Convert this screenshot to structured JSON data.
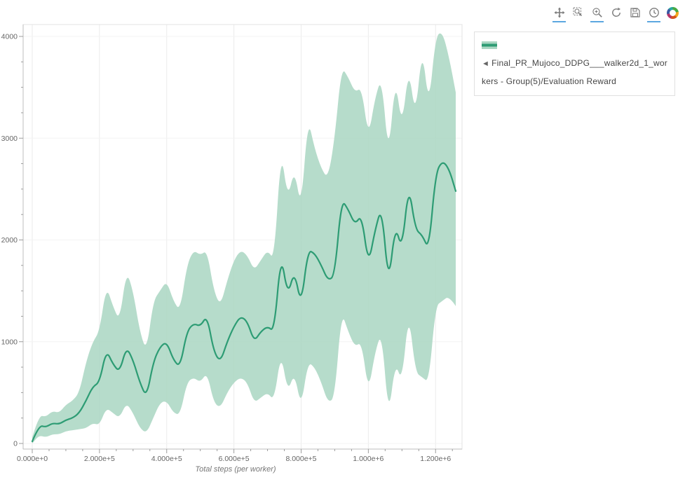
{
  "toolbar": {
    "icons": [
      {
        "name": "pan",
        "active": true
      },
      {
        "name": "box-zoom",
        "active": false
      },
      {
        "name": "wheel-zoom",
        "active": true
      },
      {
        "name": "reset",
        "active": false
      },
      {
        "name": "save",
        "active": false
      },
      {
        "name": "hover",
        "active": true
      },
      {
        "name": "bokeh-logo",
        "active": false
      }
    ]
  },
  "legend": {
    "toggle_glyph": "◄",
    "label": "Final_PR_Mujoco_DDPG___walker2d_1_workers - Group(5)/Evaluation Reward"
  },
  "chart_data": {
    "type": "line",
    "title": "",
    "xlabel": "Total steps (per worker)",
    "ylabel": "",
    "xlim": [
      0,
      1260000
    ],
    "ylim": [
      0,
      4000
    ],
    "grid": true,
    "legend_position": "top-right-outside",
    "x_ticks": {
      "values": [
        0,
        200000,
        400000,
        600000,
        800000,
        1000000,
        1200000
      ],
      "labels": [
        "0.000e+0",
        "2.000e+5",
        "4.000e+5",
        "6.000e+5",
        "8.000e+5",
        "1.000e+6",
        "1.200e+6"
      ]
    },
    "y_ticks": {
      "values": [
        0,
        1000,
        2000,
        3000,
        4000
      ],
      "labels": [
        "0",
        "1000",
        "2000",
        "3000",
        "4000"
      ]
    },
    "colors": {
      "line": "#2d9c74",
      "band": "#a9d6c2",
      "band_opacity": 0.85
    },
    "series": [
      {
        "name": "Final_PR_Mujoco_DDPG___walker2d_1_workers - Group(5)/Evaluation Reward",
        "x": [
          0,
          20000,
          40000,
          60000,
          80000,
          100000,
          120000,
          140000,
          160000,
          180000,
          200000,
          220000,
          240000,
          260000,
          280000,
          300000,
          320000,
          340000,
          360000,
          380000,
          400000,
          420000,
          440000,
          460000,
          480000,
          500000,
          520000,
          540000,
          560000,
          580000,
          600000,
          620000,
          640000,
          660000,
          680000,
          700000,
          720000,
          740000,
          760000,
          780000,
          800000,
          820000,
          840000,
          860000,
          880000,
          900000,
          920000,
          940000,
          960000,
          980000,
          1000000,
          1020000,
          1040000,
          1060000,
          1080000,
          1100000,
          1120000,
          1140000,
          1160000,
          1180000,
          1200000,
          1220000,
          1240000,
          1260000
        ],
        "mean": [
          20,
          180,
          160,
          200,
          190,
          230,
          250,
          300,
          420,
          560,
          600,
          920,
          780,
          700,
          950,
          820,
          600,
          450,
          800,
          950,
          1000,
          820,
          750,
          1100,
          1180,
          1150,
          1260,
          900,
          800,
          1000,
          1150,
          1250,
          1200,
          1000,
          1100,
          1150,
          1100,
          1870,
          1450,
          1700,
          1350,
          1900,
          1870,
          1750,
          1600,
          1650,
          2400,
          2300,
          2150,
          2250,
          1750,
          2100,
          2330,
          1550,
          2150,
          1900,
          2550,
          2100,
          2050,
          1900,
          2650,
          2780,
          2700,
          2480
        ],
        "lower": [
          0,
          80,
          60,
          90,
          90,
          120,
          130,
          140,
          150,
          200,
          180,
          350,
          300,
          250,
          400,
          300,
          150,
          100,
          250,
          400,
          420,
          300,
          280,
          600,
          650,
          600,
          700,
          400,
          350,
          500,
          600,
          650,
          600,
          400,
          450,
          500,
          420,
          900,
          500,
          700,
          350,
          800,
          750,
          600,
          400,
          450,
          1300,
          1100,
          950,
          1000,
          500,
          900,
          1100,
          250,
          800,
          600,
          1300,
          700,
          650,
          600,
          1350,
          1400,
          1450,
          1350
        ],
        "upper": [
          60,
          280,
          260,
          320,
          300,
          380,
          420,
          500,
          800,
          1000,
          1100,
          1550,
          1350,
          1200,
          1700,
          1500,
          1100,
          900,
          1400,
          1500,
          1600,
          1400,
          1300,
          1750,
          1900,
          1850,
          1900,
          1500,
          1350,
          1600,
          1800,
          1900,
          1850,
          1700,
          1800,
          1900,
          1800,
          2900,
          2400,
          2700,
          2300,
          3200,
          2900,
          2700,
          2600,
          3000,
          3700,
          3600,
          3450,
          3500,
          3000,
          3400,
          3600,
          2800,
          3600,
          3100,
          3700,
          3200,
          3900,
          3300,
          4000,
          4050,
          3800,
          3450
        ]
      }
    ]
  }
}
